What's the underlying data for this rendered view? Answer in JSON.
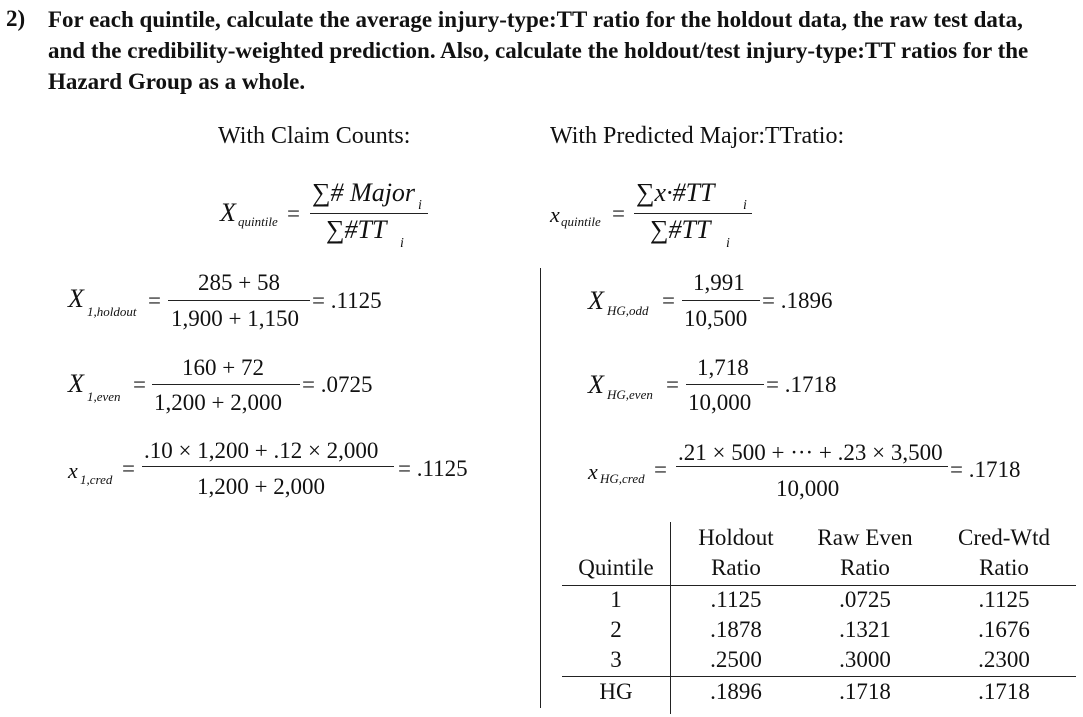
{
  "question": {
    "number": "2)",
    "lines": [
      "For each quintile, calculate the average injury-type:TT ratio for the holdout data, the raw test data,",
      "and the credibility-weighted prediction. Also, calculate the holdout/test injury-type:TT ratios for the",
      "Hazard Group as a whole."
    ]
  },
  "left_heading": "With Claim Counts:",
  "right_heading": "With Predicted Major:TTratio:",
  "formulas": {
    "left_def": {
      "var": "X",
      "sub": "quintile",
      "num": "∑# Major",
      "num_sub": "i",
      "den": "∑#TT",
      "den_sub": "i"
    },
    "right_def": {
      "var": "x",
      "sub": "quintile",
      "num": "∑x·#TT",
      "num_sub": "i",
      "den": "∑#TT",
      "den_sub": "i"
    },
    "left": [
      {
        "var": "X",
        "sub": "1,holdout",
        "num": "285 + 58",
        "den": "1,900 + 1,150",
        "result": "= .1125"
      },
      {
        "var": "X",
        "sub": "1,even",
        "num": "160 + 72",
        "den": "1,200 + 2,000",
        "result": "= .0725"
      },
      {
        "var": "x",
        "sub": "1,cred",
        "num": ".10 × 1,200 + .12 × 2,000",
        "den": "1,200 + 2,000",
        "result": "= .1125"
      }
    ],
    "right": [
      {
        "var": "X",
        "sub": "HG,odd",
        "num": "1,991",
        "den": "10,500",
        "result": "= .1896"
      },
      {
        "var": "X",
        "sub": "HG,even",
        "num": "1,718",
        "den": "10,000",
        "result": "= .1718"
      },
      {
        "var": "x",
        "sub": "HG,cred",
        "num": ".21 × 500 + ··· + .23 × 3,500",
        "den": "10,000",
        "result": "= .1718"
      }
    ]
  },
  "table": {
    "header_top": [
      "",
      "Holdout",
      "Raw Even",
      "Cred-Wtd"
    ],
    "header_bottom": [
      "Quintile",
      "Ratio",
      "Ratio",
      "Ratio"
    ],
    "rows": [
      [
        "1",
        ".1125",
        ".0725",
        ".1125"
      ],
      [
        "2",
        ".1878",
        ".1321",
        ".1676"
      ],
      [
        "3",
        ".2500",
        ".3000",
        ".2300"
      ]
    ],
    "footer": [
      "HG",
      ".1896",
      ".1718",
      ".1718"
    ]
  }
}
